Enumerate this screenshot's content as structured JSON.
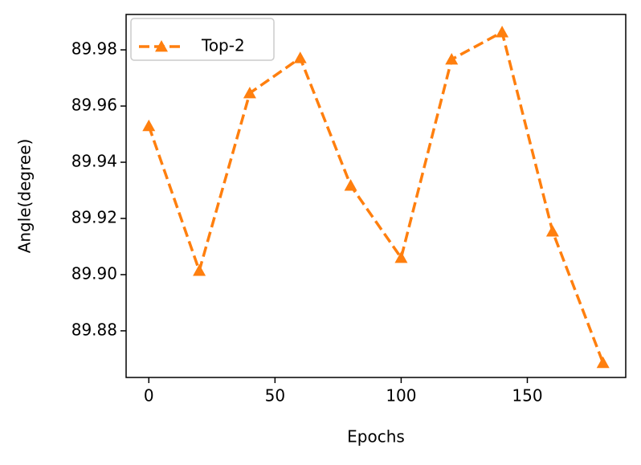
{
  "chart_data": {
    "type": "line",
    "x_label": "Epochs",
    "y_label": "Angle(degree)",
    "x": [
      0,
      20,
      40,
      60,
      80,
      100,
      120,
      140,
      160,
      180
    ],
    "series": [
      {
        "name": "Top-2",
        "color": "#ff7f0e",
        "marker": "triangle",
        "dashed": true,
        "values": [
          89.9529,
          89.9014,
          89.9646,
          89.9771,
          89.9317,
          89.906,
          89.9766,
          89.9863,
          89.9154,
          89.8686
        ]
      }
    ],
    "xlim": [
      -9,
      189
    ],
    "xticks": [
      0,
      50,
      100,
      150
    ],
    "ylim": [
      89.8634,
      89.9926
    ],
    "yticks": [
      89.88,
      {
        "value": 89.9,
        "label": "89.90"
      },
      89.92,
      89.94,
      89.96,
      89.98
    ],
    "grid": false,
    "legend": "upper left"
  }
}
